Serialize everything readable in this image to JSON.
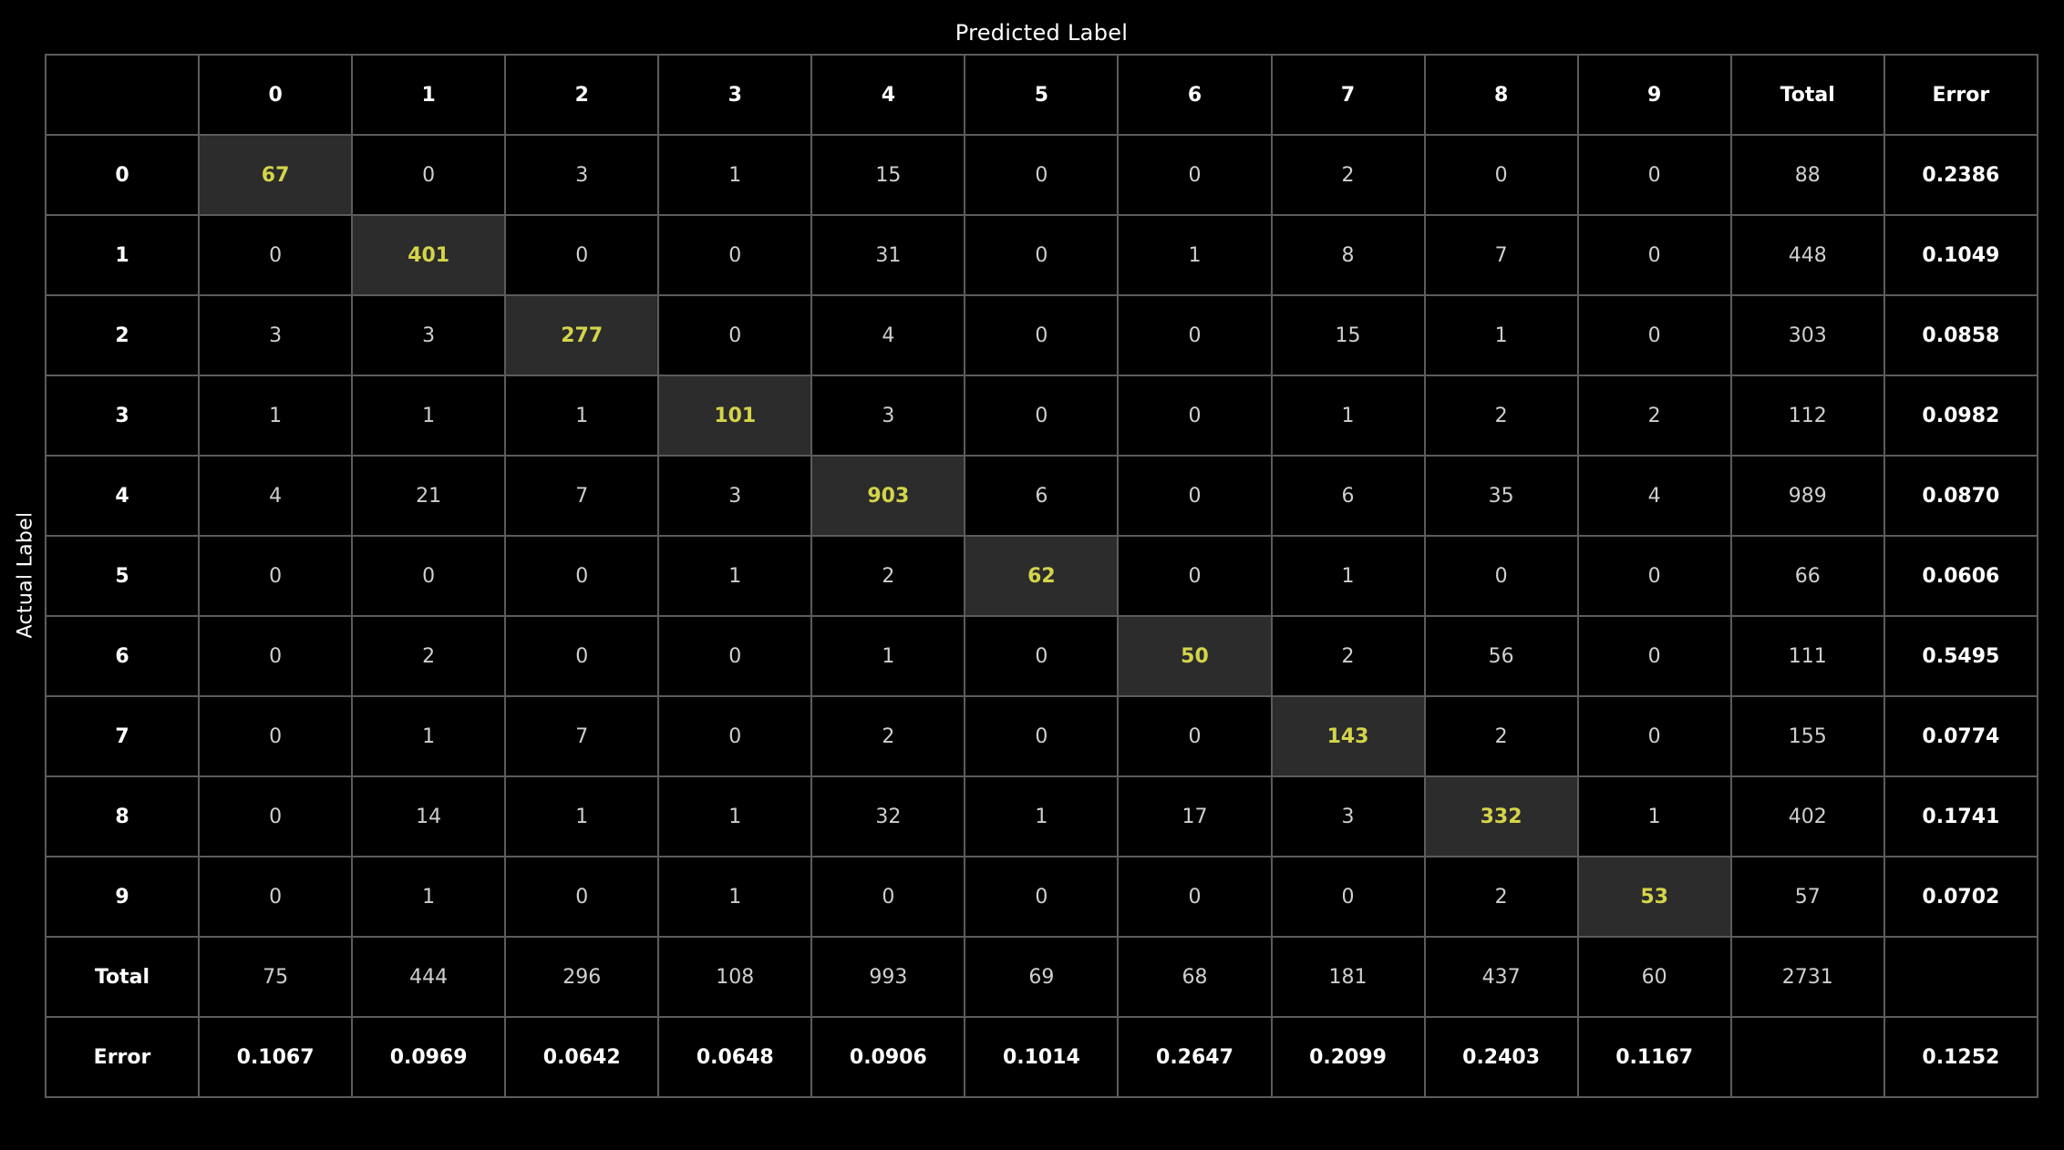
{
  "chart_data": {
    "type": "table",
    "title": "",
    "xlabel": "Predicted Label",
    "ylabel": "Actual Label",
    "classes": [
      "0",
      "1",
      "2",
      "3",
      "4",
      "5",
      "6",
      "7",
      "8",
      "9"
    ],
    "total_label": "Total",
    "error_label": "Error",
    "matrix": [
      [
        67,
        0,
        3,
        1,
        15,
        0,
        0,
        2,
        0,
        0
      ],
      [
        0,
        401,
        0,
        0,
        31,
        0,
        1,
        8,
        7,
        0
      ],
      [
        3,
        3,
        277,
        0,
        4,
        0,
        0,
        15,
        1,
        0
      ],
      [
        1,
        1,
        1,
        101,
        3,
        0,
        0,
        1,
        2,
        2
      ],
      [
        4,
        21,
        7,
        3,
        903,
        6,
        0,
        6,
        35,
        4
      ],
      [
        0,
        0,
        0,
        1,
        2,
        62,
        0,
        1,
        0,
        0
      ],
      [
        0,
        2,
        0,
        0,
        1,
        0,
        50,
        2,
        56,
        0
      ],
      [
        0,
        1,
        7,
        0,
        2,
        0,
        0,
        143,
        2,
        0
      ],
      [
        0,
        14,
        1,
        1,
        32,
        1,
        17,
        3,
        332,
        1
      ],
      [
        0,
        1,
        0,
        1,
        0,
        0,
        0,
        0,
        2,
        53
      ]
    ],
    "row_totals": [
      88,
      448,
      303,
      112,
      989,
      66,
      111,
      155,
      402,
      57
    ],
    "row_errors": [
      "0.2386",
      "0.1049",
      "0.0858",
      "0.0982",
      "0.0870",
      "0.0606",
      "0.5495",
      "0.0774",
      "0.1741",
      "0.0702"
    ],
    "col_totals": [
      75,
      444,
      296,
      108,
      993,
      69,
      68,
      181,
      437,
      60
    ],
    "grand_total": 2731,
    "col_errors": [
      "0.1067",
      "0.0969",
      "0.0642",
      "0.0648",
      "0.0906",
      "0.1014",
      "0.2647",
      "0.2099",
      "0.2403",
      "0.1167"
    ],
    "overall_error": "0.1252",
    "colors": {
      "background": "#000000",
      "grid": "#5c5c5c",
      "diagonal_fill": "#2c2c2c",
      "diagonal_text": "#d4d44a",
      "text": "#cfcfcf",
      "header_text": "#ffffff"
    }
  }
}
